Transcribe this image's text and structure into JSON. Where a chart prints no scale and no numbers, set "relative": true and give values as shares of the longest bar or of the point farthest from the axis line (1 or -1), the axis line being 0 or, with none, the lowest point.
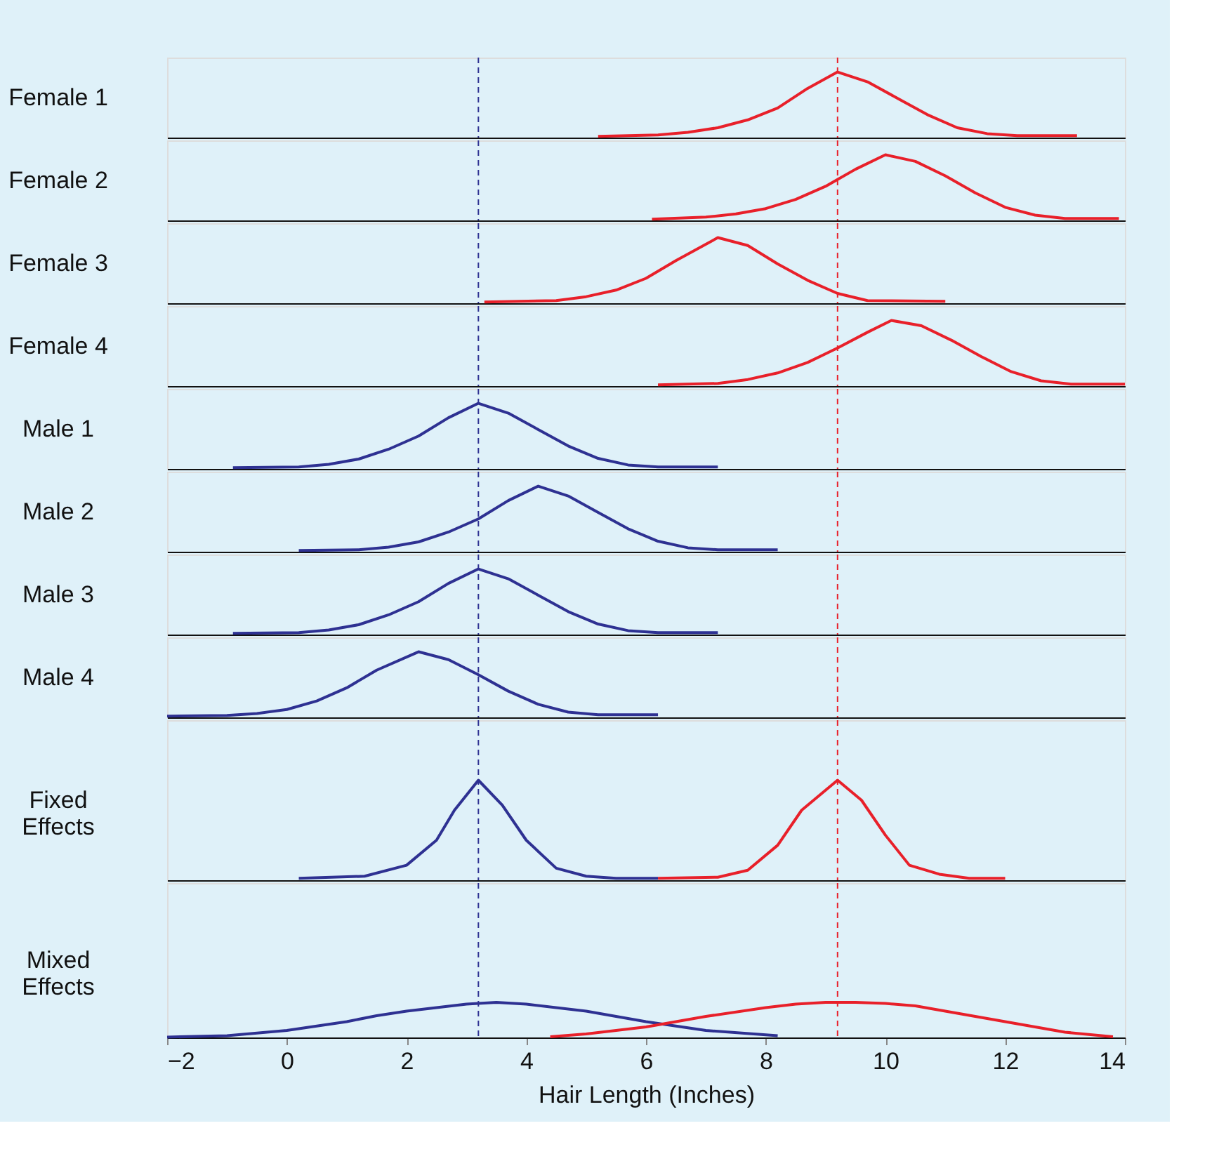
{
  "chart_data": [
    {
      "type": "line",
      "relative": true,
      "ylabel": "Female 1",
      "xlim": [
        -2,
        14
      ],
      "tick_labels": false,
      "grid": false,
      "line_style": "solid",
      "marker": "none",
      "series": [
        {
          "color": "#e8202a",
          "x": [
            5.2,
            6.2,
            6.7,
            7.2,
            7.7,
            8.2,
            8.7,
            9.2,
            9.7,
            10.2,
            10.7,
            11.2,
            11.7,
            12.2,
            13.2
          ],
          "values": [
            0.02,
            0.04,
            0.08,
            0.15,
            0.27,
            0.45,
            0.75,
            1,
            0.85,
            0.6,
            0.35,
            0.15,
            0.06,
            0.03,
            0.03
          ]
        }
      ],
      "ref_lines": [
        {
          "axis": "x",
          "value": 3.2,
          "color": "#2e3192",
          "line_style": "dashed"
        },
        {
          "axis": "x",
          "value": 9.2,
          "color": "#e8202a",
          "line_style": "dashed"
        }
      ]
    },
    {
      "type": "line",
      "relative": true,
      "ylabel": "Female 2",
      "xlim": [
        -2,
        14
      ],
      "tick_labels": false,
      "grid": false,
      "line_style": "solid",
      "marker": "none",
      "series": [
        {
          "color": "#e8202a",
          "x": [
            6.1,
            7.0,
            7.5,
            8.0,
            8.5,
            9.0,
            9.5,
            10.0,
            10.5,
            11.0,
            11.5,
            12.0,
            12.5,
            13.0,
            13.9
          ],
          "values": [
            0.02,
            0.05,
            0.1,
            0.18,
            0.32,
            0.52,
            0.78,
            1,
            0.9,
            0.68,
            0.42,
            0.2,
            0.08,
            0.03,
            0.03
          ]
        }
      ],
      "ref_lines": [
        {
          "axis": "x",
          "value": 3.2,
          "color": "#2e3192",
          "line_style": "dashed"
        },
        {
          "axis": "x",
          "value": 9.2,
          "color": "#e8202a",
          "line_style": "dashed"
        }
      ]
    },
    {
      "type": "line",
      "relative": true,
      "ylabel": "Female 3",
      "xlim": [
        -2,
        14
      ],
      "tick_labels": false,
      "grid": false,
      "line_style": "solid",
      "marker": "none",
      "series": [
        {
          "color": "#e8202a",
          "x": [
            3.3,
            4.5,
            5.0,
            5.5,
            6.0,
            6.5,
            7.2,
            7.7,
            8.2,
            8.7,
            9.2,
            9.7,
            11.0
          ],
          "values": [
            0.02,
            0.04,
            0.1,
            0.2,
            0.38,
            0.65,
            1,
            0.88,
            0.6,
            0.35,
            0.15,
            0.04,
            0.03
          ]
        }
      ],
      "ref_lines": [
        {
          "axis": "x",
          "value": 3.2,
          "color": "#2e3192",
          "line_style": "dashed"
        },
        {
          "axis": "x",
          "value": 9.2,
          "color": "#e8202a",
          "line_style": "dashed"
        }
      ]
    },
    {
      "type": "line",
      "relative": true,
      "ylabel": "Female 4",
      "xlim": [
        -2,
        14
      ],
      "tick_labels": false,
      "grid": false,
      "line_style": "solid",
      "marker": "none",
      "series": [
        {
          "color": "#e8202a",
          "x": [
            6.2,
            7.2,
            7.7,
            8.2,
            8.7,
            9.2,
            9.7,
            10.1,
            10.6,
            11.1,
            11.6,
            12.1,
            12.6,
            13.1,
            14.0
          ],
          "values": [
            0.02,
            0.04,
            0.1,
            0.2,
            0.36,
            0.58,
            0.82,
            1,
            0.92,
            0.7,
            0.45,
            0.22,
            0.08,
            0.03,
            0.03
          ]
        }
      ],
      "ref_lines": [
        {
          "axis": "x",
          "value": 3.2,
          "color": "#2e3192",
          "line_style": "dashed"
        },
        {
          "axis": "x",
          "value": 9.2,
          "color": "#e8202a",
          "line_style": "dashed"
        }
      ]
    },
    {
      "type": "line",
      "relative": true,
      "ylabel": "Male 1",
      "xlim": [
        -2,
        14
      ],
      "tick_labels": false,
      "grid": false,
      "line_style": "solid",
      "marker": "none",
      "series": [
        {
          "color": "#2e3192",
          "x": [
            -0.9,
            0.2,
            0.7,
            1.2,
            1.7,
            2.2,
            2.7,
            3.2,
            3.7,
            4.2,
            4.7,
            5.2,
            5.7,
            6.2,
            7.2
          ],
          "values": [
            0.02,
            0.03,
            0.07,
            0.15,
            0.3,
            0.5,
            0.78,
            1,
            0.85,
            0.6,
            0.35,
            0.16,
            0.06,
            0.03,
            0.03
          ]
        }
      ],
      "ref_lines": [
        {
          "axis": "x",
          "value": 3.2,
          "color": "#2e3192",
          "line_style": "dashed"
        },
        {
          "axis": "x",
          "value": 9.2,
          "color": "#e8202a",
          "line_style": "dashed"
        }
      ]
    },
    {
      "type": "line",
      "relative": true,
      "ylabel": "Male 2",
      "xlim": [
        -2,
        14
      ],
      "tick_labels": false,
      "grid": false,
      "line_style": "solid",
      "marker": "none",
      "series": [
        {
          "color": "#2e3192",
          "x": [
            0.2,
            1.2,
            1.7,
            2.2,
            2.7,
            3.2,
            3.7,
            4.2,
            4.7,
            5.2,
            5.7,
            6.2,
            6.7,
            7.2,
            8.2
          ],
          "values": [
            0.02,
            0.03,
            0.07,
            0.15,
            0.3,
            0.5,
            0.78,
            1,
            0.85,
            0.6,
            0.35,
            0.16,
            0.06,
            0.03,
            0.03
          ]
        }
      ],
      "ref_lines": [
        {
          "axis": "x",
          "value": 3.2,
          "color": "#2e3192",
          "line_style": "dashed"
        },
        {
          "axis": "x",
          "value": 9.2,
          "color": "#e8202a",
          "line_style": "dashed"
        }
      ]
    },
    {
      "type": "line",
      "relative": true,
      "ylabel": "Male 3",
      "xlim": [
        -2,
        14
      ],
      "tick_labels": false,
      "grid": false,
      "line_style": "solid",
      "marker": "none",
      "series": [
        {
          "color": "#2e3192",
          "x": [
            -0.9,
            0.2,
            0.7,
            1.2,
            1.7,
            2.2,
            2.7,
            3.2,
            3.7,
            4.2,
            4.7,
            5.2,
            5.7,
            6.2,
            7.2
          ],
          "values": [
            0.02,
            0.03,
            0.07,
            0.15,
            0.3,
            0.5,
            0.78,
            1,
            0.85,
            0.6,
            0.35,
            0.16,
            0.06,
            0.03,
            0.03
          ]
        }
      ],
      "ref_lines": [
        {
          "axis": "x",
          "value": 3.2,
          "color": "#2e3192",
          "line_style": "dashed"
        },
        {
          "axis": "x",
          "value": 9.2,
          "color": "#e8202a",
          "line_style": "dashed"
        }
      ]
    },
    {
      "type": "line",
      "relative": true,
      "ylabel": "Male 4",
      "xlim": [
        -2,
        14
      ],
      "tick_labels": false,
      "grid": false,
      "line_style": "solid",
      "marker": "none",
      "series": [
        {
          "color": "#2e3192",
          "x": [
            -2,
            -1,
            -0.5,
            0,
            0.5,
            1,
            1.5,
            2.2,
            2.7,
            3.2,
            3.7,
            4.2,
            4.7,
            5.2,
            6.2
          ],
          "values": [
            0.02,
            0.03,
            0.06,
            0.12,
            0.25,
            0.45,
            0.72,
            1,
            0.88,
            0.65,
            0.4,
            0.2,
            0.08,
            0.04,
            0.04
          ]
        }
      ],
      "ref_lines": [
        {
          "axis": "x",
          "value": 3.2,
          "color": "#2e3192",
          "line_style": "dashed"
        },
        {
          "axis": "x",
          "value": 9.2,
          "color": "#e8202a",
          "line_style": "dashed"
        }
      ]
    },
    {
      "type": "line",
      "relative": true,
      "ylabel": "Fixed Effects",
      "xlim": [
        -2,
        14
      ],
      "tick_labels": false,
      "grid": false,
      "line_style": "solid",
      "marker": "none",
      "series": [
        {
          "color": "#2e3192",
          "x": [
            0.2,
            1.3,
            2.0,
            2.5,
            2.8,
            3.2,
            3.6,
            4.0,
            4.5,
            5.0,
            5.5,
            6.2
          ],
          "values": [
            0.02,
            0.04,
            0.15,
            0.4,
            0.7,
            1,
            0.75,
            0.4,
            0.12,
            0.04,
            0.02,
            0.02
          ]
        },
        {
          "color": "#e8202a",
          "x": [
            6.2,
            7.2,
            7.7,
            8.2,
            8.6,
            9.2,
            9.6,
            10.0,
            10.4,
            10.9,
            11.4,
            12.0
          ],
          "values": [
            0.02,
            0.03,
            0.1,
            0.35,
            0.7,
            1,
            0.8,
            0.45,
            0.15,
            0.06,
            0.02,
            0.02
          ]
        }
      ],
      "ref_lines": [
        {
          "axis": "x",
          "value": 3.2,
          "color": "#2e3192",
          "line_style": "dashed"
        },
        {
          "axis": "x",
          "value": 9.2,
          "color": "#e8202a",
          "line_style": "dashed"
        }
      ]
    },
    {
      "type": "line",
      "relative": true,
      "ylabel": "Mixed Effects",
      "xlabel": "Hair Length (Inches)",
      "xlim": [
        -2,
        14
      ],
      "xticks": [
        -2,
        0,
        2,
        4,
        6,
        8,
        10,
        12,
        14
      ],
      "grid": false,
      "line_style": "solid",
      "marker": "none",
      "series": [
        {
          "color": "#2e3192",
          "x": [
            -2,
            -1,
            0,
            1,
            1.5,
            2,
            2.5,
            3,
            3.5,
            4,
            5,
            6,
            7,
            8.2
          ],
          "values": [
            0.01,
            0.05,
            0.2,
            0.45,
            0.62,
            0.75,
            0.85,
            0.95,
            1,
            0.95,
            0.75,
            0.45,
            0.2,
            0.05
          ]
        },
        {
          "color": "#e8202a",
          "x": [
            4.4,
            5,
            6,
            7,
            8,
            8.5,
            9,
            9.5,
            10,
            10.5,
            11,
            12,
            13,
            13.8
          ],
          "values": [
            0.02,
            0.1,
            0.3,
            0.6,
            0.85,
            0.95,
            1,
            1,
            0.97,
            0.9,
            0.75,
            0.45,
            0.15,
            0.02
          ]
        }
      ],
      "ref_lines": [
        {
          "axis": "x",
          "value": 3.2,
          "color": "#2e3192",
          "line_style": "dashed"
        },
        {
          "axis": "x",
          "value": 9.2,
          "color": "#e8202a",
          "line_style": "dashed"
        }
      ]
    }
  ]
}
